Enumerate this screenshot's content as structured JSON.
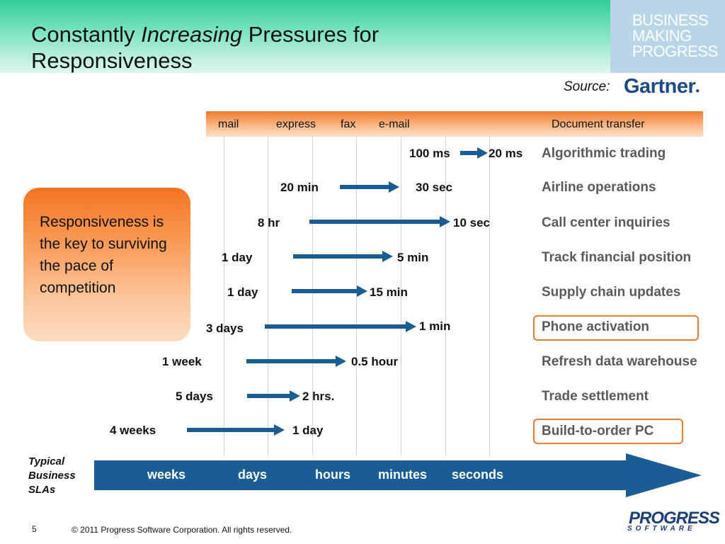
{
  "title": {
    "part1": "Constantly ",
    "italic": "Increasing",
    "part2": " Pressures for",
    "line2": "Responsiveness"
  },
  "brand": {
    "line1": "BUSINESS",
    "line2": "MAKING",
    "line3": "PROGRESS"
  },
  "source": {
    "label": "Source:",
    "logo_text": "Gartner"
  },
  "channels": [
    "mail",
    "express",
    "fax",
    "e-mail",
    "Document transfer"
  ],
  "rows": [
    {
      "from": "100 ms",
      "to": "20 ms",
      "process": "Algorithmic trading",
      "highlight": false
    },
    {
      "from": "20 min",
      "to": "30 sec",
      "process": "Airline operations",
      "highlight": false
    },
    {
      "from": "8 hr",
      "to": "10 sec",
      "process": "Call center inquiries",
      "highlight": false
    },
    {
      "from": "1 day",
      "to": "5 min",
      "process": "Track financial position",
      "highlight": false
    },
    {
      "from": "1 day",
      "to": "15 min",
      "process": "Supply chain updates",
      "highlight": false
    },
    {
      "from": "3 days",
      "to": "1 min",
      "process": "Phone activation",
      "highlight": true
    },
    {
      "from": "1 week",
      "to": "0.5 hour",
      "process": "Refresh data warehouse",
      "highlight": false
    },
    {
      "from": "5 days",
      "to": "2 hrs.",
      "process": "Trade settlement",
      "highlight": false
    },
    {
      "from": "4 weeks",
      "to": "1 day",
      "process": "Build-to-order PC",
      "highlight": true
    }
  ],
  "callout": "Responsiveness is the key to surviving the pace of competition",
  "sla": {
    "label_lines": [
      "Typical",
      "Business",
      "SLAs"
    ],
    "scale": [
      "weeks",
      "days",
      "hours",
      "minutes",
      "seconds"
    ]
  },
  "footer": {
    "page_number": "5",
    "copyright": "© 2011 Progress Software Corporation. All rights reserved."
  },
  "footer_logo": {
    "line1": "PROGRESS",
    "line2": "SOFTWARE"
  },
  "colors": {
    "arrow": "#1a5d95",
    "accent_orange": "#f07a2c",
    "header_green": "#2fce96",
    "brand_box": "#b9d6e9"
  }
}
